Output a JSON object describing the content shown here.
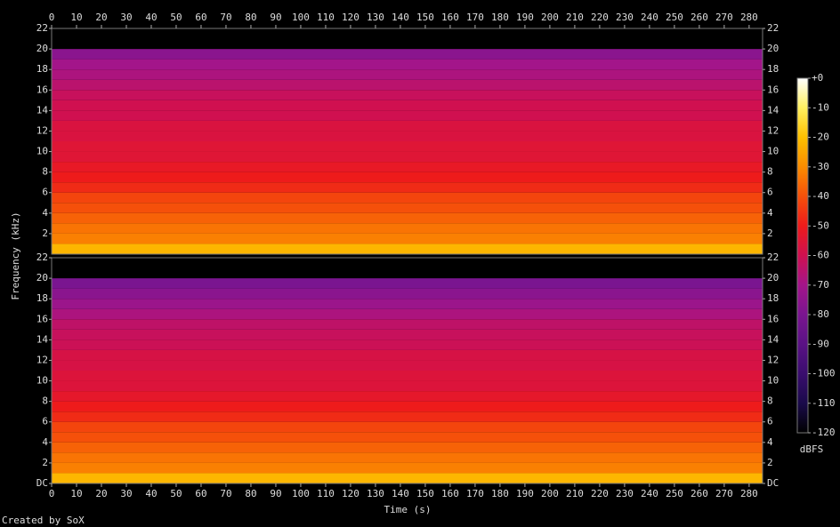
{
  "chart_data": {
    "type": "spectrogram",
    "xlabel": "Time (s)",
    "ylabel": "Frequency (kHz)",
    "credit": "Created by SoX",
    "xlim": [
      0,
      285.4
    ],
    "xticks": [
      0,
      10,
      20,
      30,
      40,
      50,
      60,
      70,
      80,
      90,
      100,
      110,
      120,
      130,
      140,
      150,
      160,
      170,
      180,
      190,
      200,
      210,
      220,
      230,
      240,
      250,
      260,
      270,
      280
    ],
    "channels": [
      {
        "ylim": [
          0,
          22
        ],
        "yticks": [
          2,
          4,
          6,
          8,
          10,
          12,
          14,
          16,
          18,
          20,
          22
        ],
        "bins": [
          0,
          1,
          2,
          3,
          4,
          5,
          6,
          7,
          8,
          9,
          10,
          11,
          12,
          13,
          14,
          15,
          16,
          17,
          18,
          19,
          20,
          21,
          22
        ],
        "dbfs": [
          -22,
          -32,
          -34,
          -37,
          -40,
          -42,
          -47,
          -50,
          -52,
          -55,
          -55,
          -57,
          -57,
          -60,
          -60,
          -62,
          -65,
          -68,
          -70,
          -76,
          -120,
          -120
        ]
      },
      {
        "ylim": [
          0,
          22
        ],
        "yticks": [
          {
            "value": 0,
            "label": "DC"
          },
          2,
          4,
          6,
          8,
          10,
          12,
          14,
          16,
          18,
          20,
          22
        ],
        "bins": [
          0,
          1,
          2,
          3,
          4,
          5,
          6,
          7,
          8,
          9,
          10,
          11,
          12,
          13,
          14,
          15,
          16,
          17,
          18,
          19,
          20,
          21,
          22
        ],
        "dbfs": [
          -22,
          -32,
          -34,
          -37,
          -40,
          -42,
          -47,
          -50,
          -53,
          -56,
          -56,
          -58,
          -58,
          -61,
          -62,
          -64,
          -68,
          -72,
          -76,
          -80,
          -120,
          -120
        ]
      }
    ],
    "colorbar": {
      "label": "dBFS",
      "lim": [
        -120,
        0
      ],
      "ticks": [
        {
          "value": 0,
          "label": "+0"
        },
        -10,
        -20,
        -30,
        -40,
        -50,
        -60,
        -70,
        -80,
        -90,
        -100,
        -110,
        -120
      ],
      "colormap": [
        "#000000",
        "#1a0a4a",
        "#3a0d6e",
        "#5a1285",
        "#7a1590",
        "#a3158a",
        "#d01050",
        "#ee1b1b",
        "#f5500a",
        "#fb8c00",
        "#fdc000",
        "#fff060",
        "#ffffff"
      ]
    }
  }
}
